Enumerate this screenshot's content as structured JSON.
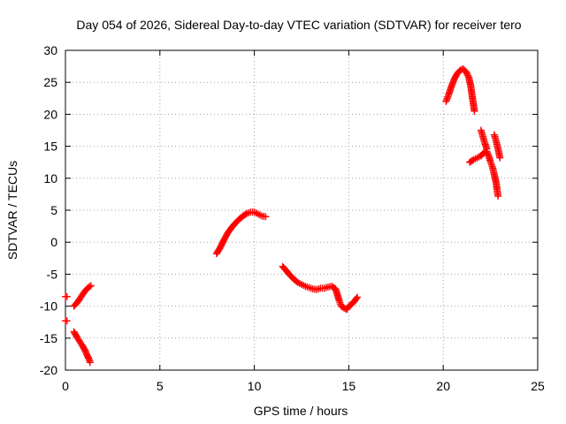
{
  "chart_data": {
    "type": "scatter",
    "title": "Day 054 of 2026, Sidereal Day-to-day VTEC variation (SDTVAR) for receiver tero",
    "xlabel": "GPS time / hours",
    "ylabel": "SDTVAR / TECUs",
    "xlim": [
      0,
      25
    ],
    "ylim": [
      -20,
      30
    ],
    "x_ticks": [
      0,
      5,
      10,
      15,
      20,
      25
    ],
    "y_ticks": [
      -20,
      -15,
      -10,
      -5,
      0,
      5,
      10,
      15,
      20,
      25,
      30
    ],
    "grid": true,
    "marker": "plus",
    "marker_color": "#ff0000",
    "segments": [
      {
        "x": [
          0.0,
          0.08
        ],
        "y": [
          -8.5,
          -8.5
        ]
      },
      {
        "x": [
          0.0,
          0.08
        ],
        "y": [
          -12.3,
          -12.3
        ]
      },
      {
        "x": [
          0.45,
          0.6,
          0.75,
          0.9,
          1.05,
          1.2,
          1.35
        ],
        "y": [
          -10.0,
          -9.5,
          -8.9,
          -8.2,
          -7.6,
          -7.1,
          -6.8
        ]
      },
      {
        "x": [
          0.45,
          0.6,
          0.75,
          0.9,
          1.05,
          1.15,
          1.25,
          1.3
        ],
        "y": [
          -14.0,
          -14.8,
          -15.5,
          -16.2,
          -17.0,
          -17.7,
          -18.3,
          -18.8
        ]
      },
      {
        "x": [
          8.0,
          8.2,
          8.4,
          8.6,
          8.8,
          9.0,
          9.2,
          9.4,
          9.6,
          9.8,
          10.0,
          10.2,
          10.4,
          10.6
        ],
        "y": [
          -1.8,
          -0.8,
          0.4,
          1.5,
          2.3,
          3.0,
          3.6,
          4.1,
          4.5,
          4.7,
          4.7,
          4.4,
          4.1,
          4.0
        ]
      },
      {
        "x": [
          11.5,
          11.7,
          11.9,
          12.1,
          12.3,
          12.5,
          12.7,
          12.9,
          13.1,
          13.3,
          13.5,
          13.7,
          13.9,
          14.1,
          14.3,
          14.5,
          14.6,
          14.75,
          14.9,
          15.0,
          15.15,
          15.3,
          15.45
        ],
        "y": [
          -3.8,
          -4.5,
          -5.2,
          -5.8,
          -6.3,
          -6.6,
          -6.9,
          -7.1,
          -7.3,
          -7.4,
          -7.2,
          -7.2,
          -7.0,
          -6.9,
          -7.3,
          -9.2,
          -10.0,
          -10.3,
          -10.5,
          -10.0,
          -9.7,
          -9.2,
          -8.6
        ]
      },
      {
        "x": [
          20.15,
          20.3,
          20.45,
          20.6,
          20.75,
          20.9,
          21.05,
          21.2,
          21.35,
          21.45,
          21.55,
          21.65
        ],
        "y": [
          22.0,
          23.2,
          24.5,
          25.6,
          26.4,
          26.9,
          27.1,
          26.7,
          25.8,
          24.5,
          22.5,
          20.5
        ]
      },
      {
        "x": [
          21.4,
          21.6,
          21.8,
          22.0,
          22.15,
          22.3,
          22.4,
          22.5,
          22.6,
          22.7,
          22.8,
          22.85,
          22.9
        ],
        "y": [
          12.5,
          12.9,
          13.2,
          13.5,
          14.0,
          14.2,
          13.5,
          12.6,
          11.8,
          10.6,
          9.3,
          8.2,
          7.2
        ]
      },
      {
        "x": [
          22.0,
          22.1,
          22.2,
          22.3
        ],
        "y": [
          17.5,
          16.5,
          15.5,
          14.6
        ]
      },
      {
        "x": [
          22.7,
          22.8,
          22.9,
          23.0
        ],
        "y": [
          16.8,
          15.8,
          14.6,
          13.2
        ]
      }
    ]
  }
}
